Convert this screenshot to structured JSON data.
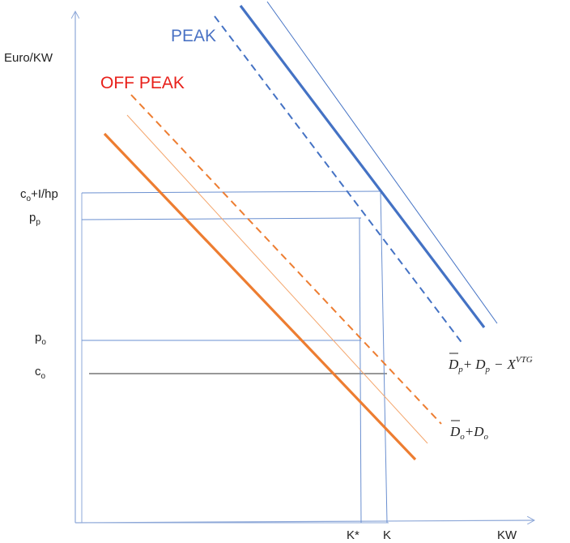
{
  "axes": {
    "y_label": "Euro/KW",
    "x_label": "KW"
  },
  "titles": {
    "peak": "PEAK",
    "off_peak": "OFF PEAK"
  },
  "y_ticks": {
    "c_hp": {
      "base": "c",
      "sub": "o",
      "rest": "+I/hp"
    },
    "p_p": {
      "base": "p",
      "sub": "p"
    },
    "p_o": {
      "base": "p",
      "sub": "o"
    },
    "c_o": {
      "base": "c",
      "sub": "o"
    }
  },
  "x_ticks": {
    "k_star": "K*",
    "k": "K"
  },
  "curve_labels": {
    "peak": {
      "d_bar": "D",
      "d_bar_sub": "p",
      "plus": "+",
      "d": "D",
      "d_sub": "p",
      "minus": "−",
      "x": "X",
      "x_sup": "VTG"
    },
    "off_peak": {
      "d_bar": "D",
      "d_bar_sub": "o",
      "plus": "+",
      "d": "D",
      "d_sub": "o"
    }
  },
  "colors": {
    "axis": "#8ea8d8",
    "peak": "#4472c4",
    "off_peak": "#ed7d31",
    "guide": "#6a8fd0",
    "c_o_line": "#777777"
  }
}
